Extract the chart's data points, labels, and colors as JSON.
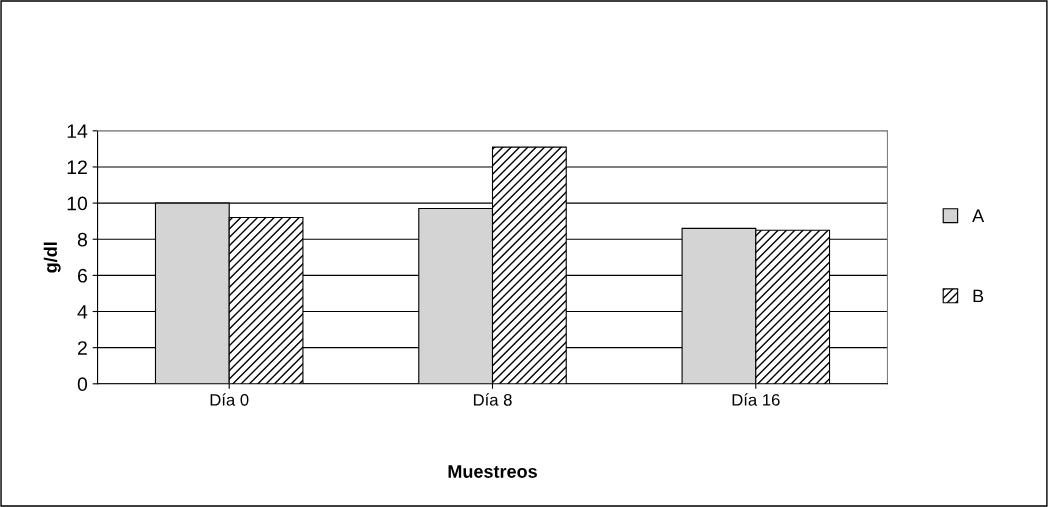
{
  "chart_data": {
    "type": "bar",
    "xlabel": "Muestreos",
    "ylabel": "g/dl",
    "categories": [
      "Día 0",
      "Día 8",
      "Día 16"
    ],
    "series": [
      {
        "name": "A",
        "color": "#d4d4d4",
        "values": [
          10.0,
          9.7,
          8.6
        ]
      },
      {
        "name": "B",
        "color": "#000000",
        "values": [
          9.2,
          13.1,
          8.5
        ]
      }
    ],
    "ylim": [
      0,
      14
    ],
    "yticks": [
      0,
      2,
      4,
      6,
      8,
      10,
      12,
      14
    ],
    "grid": "y",
    "legend": "right"
  }
}
